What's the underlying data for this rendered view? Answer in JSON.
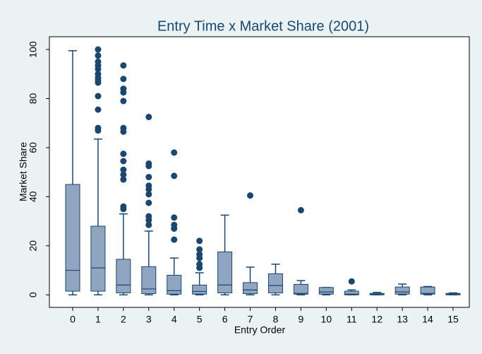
{
  "chart_data": {
    "type": "box",
    "title": "Entry Time x Market Share (2001)",
    "x_label": "Entry Order",
    "y_label": "Market Share",
    "categories": [
      "0",
      "1",
      "2",
      "3",
      "4",
      "5",
      "6",
      "7",
      "8",
      "9",
      "10",
      "11",
      "12",
      "13",
      "14",
      "15"
    ],
    "color": "#8fa5c0",
    "edge_color": "#1a476f",
    "boxes": [
      {
        "min": 0,
        "q1": 1.5,
        "median": 10,
        "q3": 45,
        "max": 99.5,
        "outliers": []
      },
      {
        "min": 0,
        "q1": 1.5,
        "median": 11,
        "q3": 28,
        "max": 63.5,
        "outliers": [
          100,
          97.5,
          95,
          93.5,
          92,
          90,
          88.5,
          87.5,
          86.5,
          81,
          75.5,
          68,
          67
        ]
      },
      {
        "min": 0,
        "q1": 0.8,
        "median": 4,
        "q3": 14.5,
        "max": 33,
        "outliers": [
          93.5,
          88,
          84,
          82.5,
          79,
          68,
          66.5,
          57.5,
          54.5,
          51,
          49,
          47,
          36,
          35
        ]
      },
      {
        "min": 0,
        "q1": 0.5,
        "median": 2.4,
        "q3": 11.5,
        "max": 26,
        "outliers": [
          72.5,
          53.5,
          52.5,
          48,
          44.5,
          43,
          41,
          37.5,
          32,
          30.5,
          28.5
        ]
      },
      {
        "min": 0,
        "q1": 0.3,
        "median": 1.7,
        "q3": 8,
        "max": 15,
        "outliers": [
          58,
          48.5,
          31.5,
          28.5,
          27,
          22.5
        ]
      },
      {
        "min": 0,
        "q1": 0.3,
        "median": 1.4,
        "q3": 4,
        "max": 9,
        "outliers": [
          22,
          18.5,
          16.5,
          15,
          12.5,
          11
        ]
      },
      {
        "min": 0,
        "q1": 0.8,
        "median": 4,
        "q3": 17.5,
        "max": 32.5,
        "outliers": []
      },
      {
        "min": 0,
        "q1": 0.5,
        "median": 2,
        "q3": 5,
        "max": 11.3,
        "outliers": [
          40.5
        ]
      },
      {
        "min": 0,
        "q1": 0.8,
        "median": 3.8,
        "q3": 8.6,
        "max": 12.5,
        "outliers": []
      },
      {
        "min": 0,
        "q1": 0.3,
        "median": 0.6,
        "q3": 4.3,
        "max": 5.8,
        "outliers": [
          34.5
        ]
      },
      {
        "min": 0,
        "q1": 0.3,
        "median": 1.2,
        "q3": 3,
        "max": 3,
        "outliers": []
      },
      {
        "min": 0,
        "q1": 0,
        "median": 0.3,
        "q3": 1.5,
        "max": 2,
        "outliers": [
          5.5
        ]
      },
      {
        "min": 0,
        "q1": 0,
        "median": 0.3,
        "q3": 0.6,
        "max": 1,
        "outliers": []
      },
      {
        "min": 0,
        "q1": 0.3,
        "median": 1.2,
        "q3": 3.2,
        "max": 4.4,
        "outliers": []
      },
      {
        "min": 0,
        "q1": 0.3,
        "median": 0.6,
        "q3": 3.2,
        "max": 3.4,
        "outliers": []
      },
      {
        "min": 0,
        "q1": 0,
        "median": 0.3,
        "q3": 0.6,
        "max": 0.8,
        "outliers": []
      }
    ],
    "ylim": [
      -5.1,
      105.2
    ],
    "yticks": [
      0,
      20,
      40,
      60,
      80,
      100
    ]
  }
}
